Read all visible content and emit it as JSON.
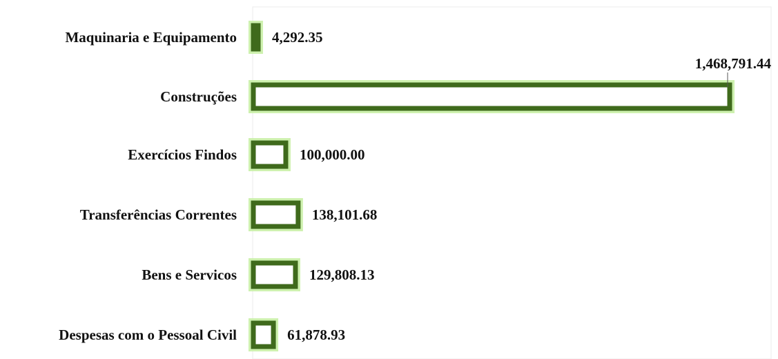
{
  "chart_data": {
    "type": "bar",
    "orientation": "horizontal",
    "categories": [
      "Maquinaria e Equipamento",
      "Construções",
      "Exercícios Findos",
      "Transferências Correntes",
      "Bens e Servicos",
      "Despesas com o Pessoal Civil"
    ],
    "values": [
      4292.35,
      1468791.44,
      100000.0,
      138101.68,
      129808.13,
      61878.93
    ],
    "value_labels": [
      "4,292.35",
      "1,468,791.44",
      "100,000.00",
      "138,101.68",
      "129,808.13",
      "61,878.93"
    ],
    "title": "",
    "xlabel": "",
    "ylabel": "",
    "xlim": [
      0,
      1500000
    ],
    "grid": false,
    "legend": "none",
    "colors": {
      "bar_border": "#3f6a1c",
      "bar_fill": "#ffffff",
      "bar_glow": "#c9efa6"
    }
  }
}
